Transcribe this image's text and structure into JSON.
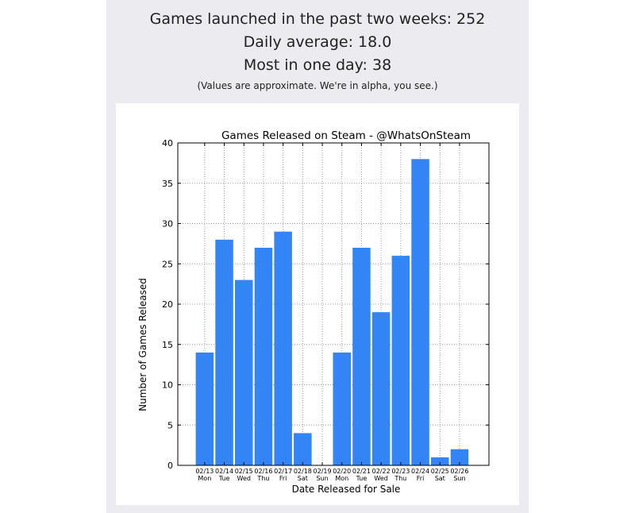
{
  "header": {
    "games_launched": "Games launched in the past two weeks: 252",
    "daily_average": "Daily average: 18.0",
    "most_in_one_day": "Most in one day: 38",
    "note": "(Values are approximate. We're in alpha, you see.)"
  },
  "colors": {
    "bar": "#3385f5",
    "axis": "#000000",
    "grid": "#9a9a9a",
    "panel": "#ebebf0"
  },
  "chart_data": {
    "type": "bar",
    "title": "Games Released on Steam - @WhatsOnSteam",
    "xlabel": "Date Released for Sale",
    "ylabel": "Number of Games Released",
    "ylim": [
      0,
      40
    ],
    "yticks": [
      0,
      5,
      10,
      15,
      20,
      25,
      30,
      35,
      40
    ],
    "grid": true,
    "categories": [
      "02/13",
      "02/14",
      "02/15",
      "02/16",
      "02/17",
      "02/18",
      "02/19",
      "02/20",
      "02/21",
      "02/22",
      "02/23",
      "02/24",
      "02/25",
      "02/26"
    ],
    "weekdays": [
      "Mon",
      "Tue",
      "Wed",
      "Thu",
      "Fri",
      "Sat",
      "Sun",
      "Mon",
      "Tue",
      "Wed",
      "Thu",
      "Fri",
      "Sat",
      "Sun"
    ],
    "values": [
      14,
      28,
      23,
      27,
      29,
      4,
      0,
      14,
      27,
      19,
      26,
      38,
      1,
      2
    ]
  }
}
